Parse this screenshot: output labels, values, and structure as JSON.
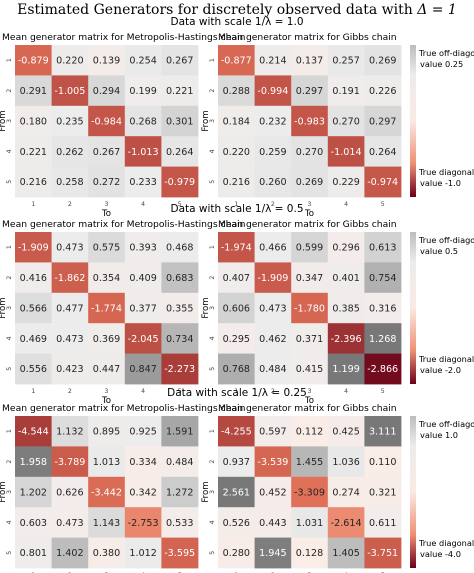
{
  "title": "Estimated Generators for discretely observed data with",
  "title_math": "Δ = 1",
  "chart_data": [
    {
      "type": "heatmap",
      "group_title_prefix": "Data with scale",
      "group_title_math": "1/λ = 1.0",
      "panels": [
        {
          "title": "Mean generator matrix for Metropolis-Hastings chain",
          "xlabel": "To",
          "ylabel": "From",
          "x_ticks": [
            "1",
            "2",
            "3",
            "4",
            "5"
          ],
          "y_ticks": [
            "1",
            "2",
            "3",
            "4",
            "5"
          ],
          "labels": [
            [
              "-0.879",
              "0.220",
              "0.139",
              "0.254",
              "0.267"
            ],
            [
              "0.291",
              "-1.005",
              "0.294",
              "0.199",
              "0.221"
            ],
            [
              "0.180",
              "0.235",
              "-0.984",
              "0.268",
              "0.301"
            ],
            [
              "0.221",
              "0.262",
              "0.267",
              "-1.013",
              "0.264"
            ],
            [
              "0.216",
              "0.258",
              "0.272",
              "0.233",
              "-0.979"
            ]
          ]
        },
        {
          "title": "Mean generator matrix for Gibbs chain",
          "xlabel": "To",
          "ylabel": "From",
          "x_ticks": [
            "1",
            "2",
            "3",
            "4",
            "5"
          ],
          "y_ticks": [
            "1",
            "2",
            "3",
            "4",
            "5"
          ],
          "labels": [
            [
              "-0.877",
              "0.214",
              "0.137",
              "0.257",
              "0.269"
            ],
            [
              "0.288",
              "-0.994",
              "0.297",
              "0.191",
              "0.226"
            ],
            [
              "0.184",
              "0.232",
              "-0.983",
              "0.270",
              "0.297"
            ],
            [
              "0.220",
              "0.259",
              "0.270",
              "-1.014",
              "0.264"
            ],
            [
              "0.216",
              "0.260",
              "0.269",
              "0.229",
              "-0.974"
            ]
          ]
        }
      ],
      "colorbar": {
        "top_label_1": "True off-diagonal",
        "top_label_2": "value 0.25",
        "bottom_label_1": "True diagonal",
        "bottom_label_2": "value -1.0",
        "range": [
          -1.0,
          0.25
        ]
      }
    },
    {
      "type": "heatmap",
      "group_title_prefix": "Data with scale",
      "group_title_math": "1/λ = 0.5",
      "panels": [
        {
          "title": "Mean generator matrix for Metropolis-Hastings chain",
          "xlabel": "To",
          "ylabel": "From",
          "x_ticks": [
            "1",
            "2",
            "3",
            "4",
            "5"
          ],
          "y_ticks": [
            "1",
            "2",
            "3",
            "4",
            "5"
          ],
          "labels": [
            [
              "-1.909",
              "0.473",
              "0.575",
              "0.393",
              "0.468"
            ],
            [
              "0.416",
              "-1.862",
              "0.354",
              "0.409",
              "0.683"
            ],
            [
              "0.566",
              "0.477",
              "-1.774",
              "0.377",
              "0.355"
            ],
            [
              "0.469",
              "0.473",
              "0.369",
              "-2.045",
              "0.734"
            ],
            [
              "0.556",
              "0.423",
              "0.447",
              "0.847",
              "-2.273"
            ]
          ]
        },
        {
          "title": "Mean generator matrix for Gibbs chain",
          "xlabel": "To",
          "ylabel": "From",
          "x_ticks": [
            "1",
            "2",
            "3",
            "4",
            "5"
          ],
          "y_ticks": [
            "1",
            "2",
            "3",
            "4",
            "5"
          ],
          "labels": [
            [
              "-1.974",
              "0.466",
              "0.599",
              "0.296",
              "0.613"
            ],
            [
              "0.407",
              "-1.909",
              "0.347",
              "0.401",
              "0.754"
            ],
            [
              "0.606",
              "0.473",
              "-1.780",
              "0.385",
              "0.316"
            ],
            [
              "0.295",
              "0.462",
              "0.371",
              "-2.396",
              "1.268"
            ],
            [
              "0.768",
              "0.484",
              "0.415",
              "1.199",
              "-2.866"
            ]
          ]
        }
      ],
      "colorbar": {
        "top_label_1": "True off-diagonal",
        "top_label_2": "value 0.5",
        "bottom_label_1": "True diagonal",
        "bottom_label_2": "value -2.0",
        "range": [
          -2.0,
          0.5
        ]
      }
    },
    {
      "type": "heatmap",
      "group_title_prefix": "Data with scale",
      "group_title_math": "1/λ = 0.25",
      "panels": [
        {
          "title": "Mean generator matrix for Metropolis-Hastings chain",
          "xlabel": "To",
          "ylabel": "From",
          "x_ticks": [
            "1",
            "2",
            "3",
            "4",
            "5"
          ],
          "y_ticks": [
            "1",
            "2",
            "3",
            "4",
            "5"
          ],
          "labels": [
            [
              "-4.544",
              "1.132",
              "0.895",
              "0.925",
              "1.591"
            ],
            [
              "1.958",
              "-3.789",
              "1.013",
              "0.334",
              "0.484"
            ],
            [
              "1.202",
              "0.626",
              "-3.442",
              "0.342",
              "1.272"
            ],
            [
              "0.603",
              "0.473",
              "1.143",
              "-2.753",
              "0.533"
            ],
            [
              "0.801",
              "1.402",
              "0.380",
              "1.012",
              "-3.595"
            ]
          ]
        },
        {
          "title": "Mean generator matrix for Gibbs chain",
          "xlabel": "To",
          "ylabel": "From",
          "x_ticks": [
            "1",
            "2",
            "3",
            "4",
            "5"
          ],
          "y_ticks": [
            "1",
            "2",
            "3",
            "4",
            "5"
          ],
          "labels": [
            [
              "-4.255",
              "0.597",
              "0.112",
              "0.425",
              "3.111"
            ],
            [
              "0.937",
              "-3.539",
              "1.455",
              "1.036",
              "0.110"
            ],
            [
              "2.561",
              "0.452",
              "-3.309",
              "0.274",
              "0.321"
            ],
            [
              "0.526",
              "0.443",
              "1.031",
              "-2.614",
              "0.611"
            ],
            [
              "0.280",
              "1.945",
              "0.128",
              "1.405",
              "-3.751"
            ]
          ]
        }
      ],
      "colorbar": {
        "top_label_1": "True off-diagonal",
        "top_label_2": "value 1.0",
        "bottom_label_1": "True diagonal",
        "bottom_label_2": "value -4.0",
        "range": [
          -4.0,
          1.0
        ]
      }
    }
  ]
}
